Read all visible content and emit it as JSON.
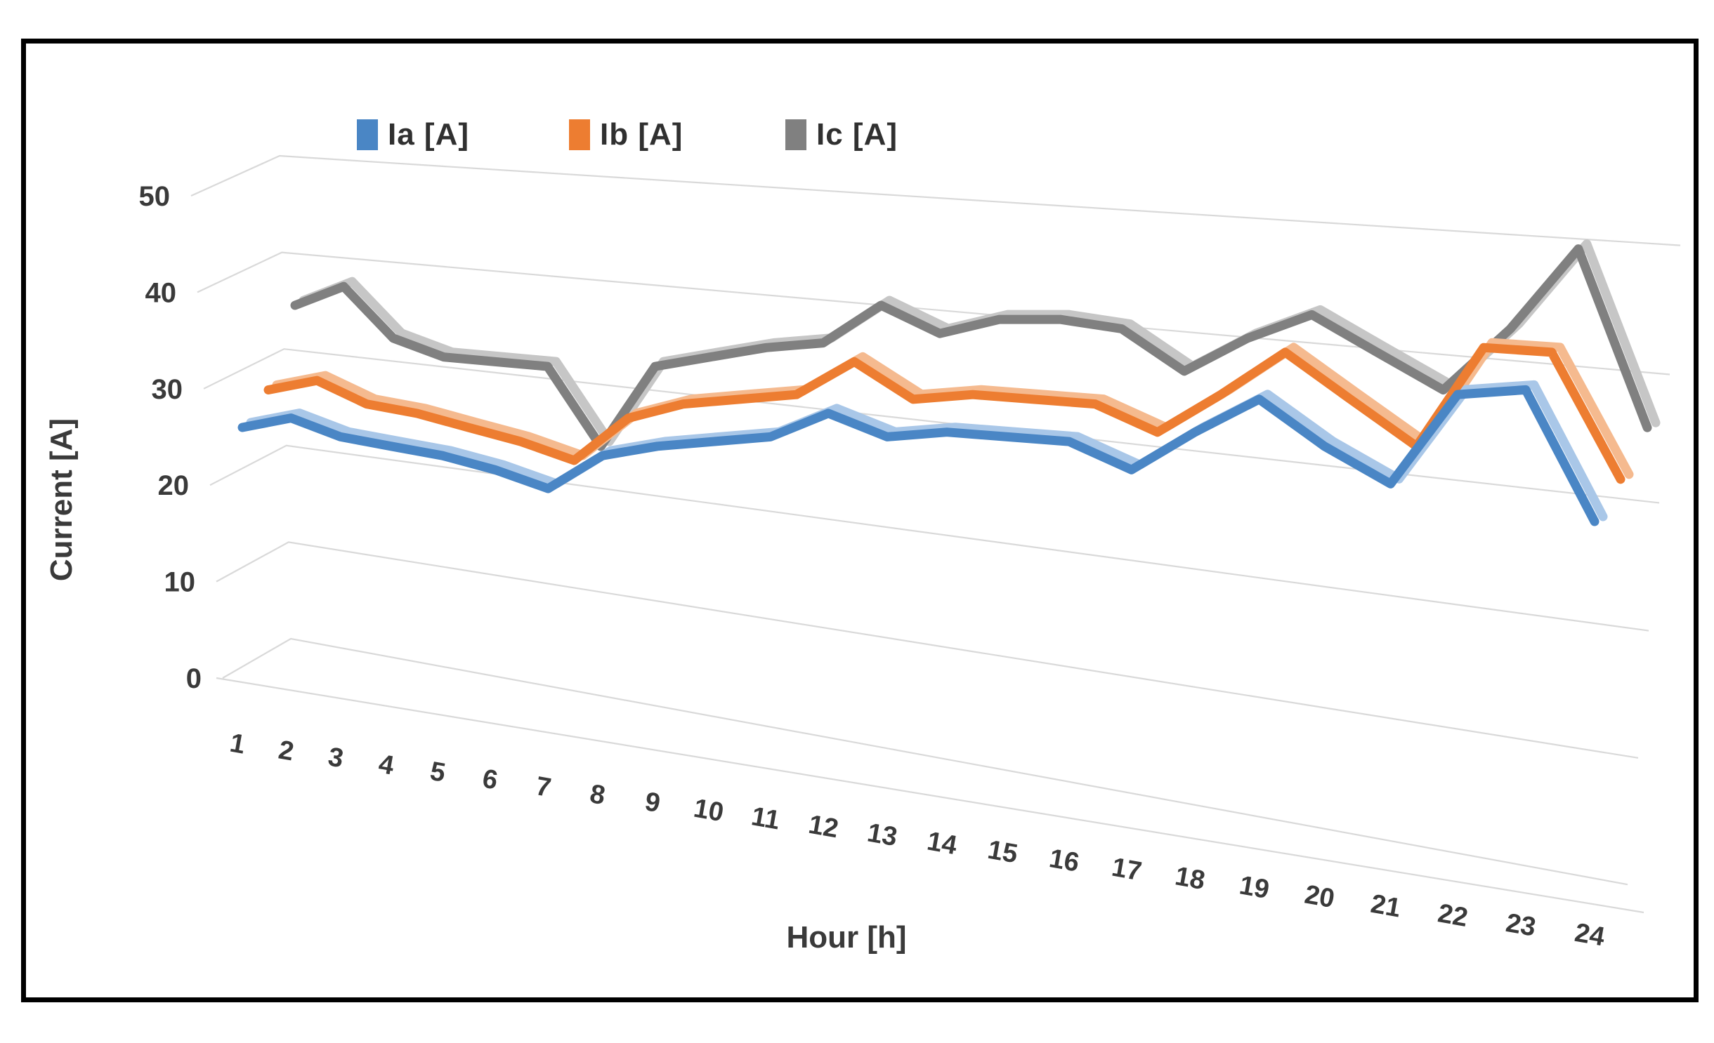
{
  "chart_data": {
    "type": "line",
    "variant": "3d-ribbon",
    "title": "",
    "xlabel": "Hour [h]",
    "ylabel": "Current [A]",
    "categories": [
      1,
      2,
      3,
      4,
      5,
      6,
      7,
      8,
      9,
      10,
      11,
      12,
      13,
      14,
      15,
      16,
      17,
      18,
      19,
      20,
      21,
      22,
      23,
      24
    ],
    "y_ticks": [
      0,
      10,
      20,
      30,
      40,
      50
    ],
    "ylim": [
      0,
      50
    ],
    "grid": true,
    "legend_position": "top",
    "background_color": "#ffffff",
    "border_color": "#000000",
    "gridline_color": "#d9d9d9",
    "text_color": "#3a3a3a",
    "series": [
      {
        "name": "Ia [A]",
        "color": "#4A86C5",
        "side_color": "#A9C7E8",
        "values": [
          25,
          26,
          24,
          23,
          22,
          20.5,
          18.5,
          22,
          23,
          23.5,
          24,
          26.5,
          24,
          24.5,
          24,
          23.5,
          20.5,
          24.5,
          28,
          23,
          19,
          28.5,
          29,
          15
        ]
      },
      {
        "name": "Ib [A]",
        "color": "#ED7D31",
        "side_color": "#F5BA8F",
        "values": [
          27.5,
          28.5,
          26,
          25,
          23.5,
          22,
          20,
          24.5,
          26,
          26.5,
          27,
          30.5,
          26.5,
          27,
          26.5,
          26,
          23,
          27,
          31.5,
          26.5,
          21.5,
          32,
          31.5,
          18
        ]
      },
      {
        "name": "Ic [A]",
        "color": "#808080",
        "side_color": "#C6C6C6",
        "values": [
          35,
          37,
          31.5,
          29.5,
          29,
          28.5,
          20,
          28.5,
          29.5,
          30.5,
          31,
          35,
          32,
          33.5,
          33.5,
          32.5,
          28,
          31.5,
          34,
          30,
          26,
          32.5,
          41,
          22
        ]
      }
    ]
  }
}
